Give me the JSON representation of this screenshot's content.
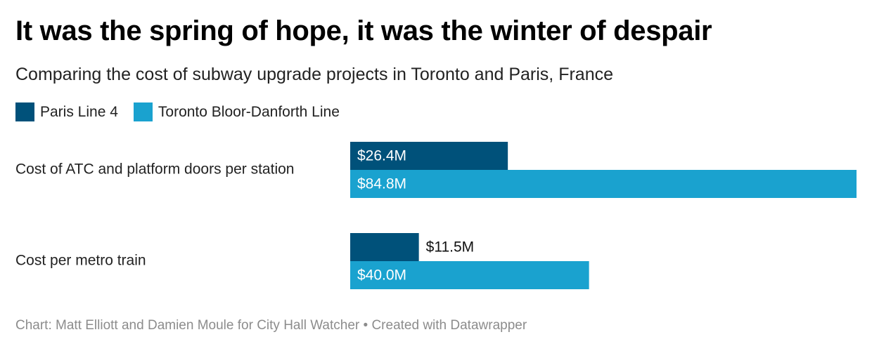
{
  "header": {
    "title": "It was the spring of hope, it was the winter of despair",
    "subtitle": "Comparing the cost of subway upgrade projects in Toronto and Paris, France"
  },
  "footer": {
    "source": "Chart: Matt Elliott and Damien Moule for City Hall Watcher • Created with Datawrapper"
  },
  "chart_data": {
    "type": "bar",
    "orientation": "horizontal",
    "categories": [
      "Cost of ATC and platform doors per station",
      "Cost per metro train"
    ],
    "series": [
      {
        "name": "Paris Line 4",
        "color": "#00517a",
        "values": [
          26.4,
          11.5
        ],
        "labels": [
          "$26.4M",
          "$11.5M"
        ]
      },
      {
        "name": "Toronto Bloor-Danforth Line",
        "color": "#1aa2cf",
        "values": [
          84.8,
          40.0
        ],
        "labels": [
          "$84.8M",
          "$40.0M"
        ]
      }
    ],
    "xlim": [
      0,
      84.8
    ],
    "grid": false,
    "legend": "top-left"
  }
}
